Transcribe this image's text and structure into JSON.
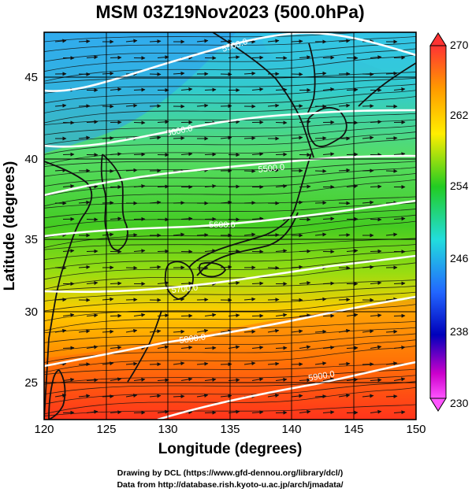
{
  "title": "MSM 03Z19Nov2023 (500.0hPa)",
  "x_axis": {
    "label": "Longitude (degrees)",
    "ticks": [
      "120",
      "125",
      "130",
      "135",
      "140",
      "145",
      "150"
    ]
  },
  "y_axis": {
    "label": "Latitude  (degrees)",
    "ticks": [
      "25",
      "30",
      "35",
      "40",
      "45"
    ]
  },
  "colorbar": {
    "labels": [
      "270",
      "262",
      "254",
      "246",
      "238",
      "230"
    ],
    "colors": [
      "#ff3333",
      "#ff9900",
      "#ffee00",
      "#22cc22",
      "#22dddd",
      "#2266ff",
      "#0000bb",
      "#cc00cc",
      "#ff55ff"
    ]
  },
  "contour_labels": [
    "5500.0",
    "5600.0",
    "5500.0",
    "5600.0",
    "5700.0",
    "5800.0",
    "5900.0"
  ],
  "credits": {
    "line1": "Drawing by DCL (https://www.gfd-dennou.org/library/dcl/)",
    "line2": "Data from http://database.rish.kyoto-u.ac.jp/arch/jmadata/"
  },
  "chart_data": {
    "type": "heatmap",
    "title": "MSM 03Z19Nov2023 (500.0hPa)",
    "xlabel": "Longitude (degrees)",
    "ylabel": "Latitude  (degrees)",
    "xlim": [
      120,
      150
    ],
    "ylim": [
      22.5,
      47.6
    ],
    "colorbar_range": [
      230,
      270
    ],
    "fields": [
      "temperature (shaded)",
      "geopotential height (white contours)",
      "wind (streamlines)"
    ],
    "temperature_by_latitude": [
      {
        "lat": 47,
        "value": 247
      },
      {
        "lat": 44,
        "value": 250
      },
      {
        "lat": 41,
        "value": 253
      },
      {
        "lat": 38,
        "value": 255
      },
      {
        "lat": 35,
        "value": 257
      },
      {
        "lat": 32,
        "value": 259
      },
      {
        "lat": 29,
        "value": 262
      },
      {
        "lat": 26,
        "value": 265
      },
      {
        "lat": 23,
        "value": 267
      }
    ],
    "height_contours": [
      {
        "label": "5500.0",
        "lon": 140,
        "lat": 46.5
      },
      {
        "label": "5600.0",
        "lon": 131,
        "lat": 41.5
      },
      {
        "label": "5500.0",
        "lon": 138,
        "lat": 39.5
      },
      {
        "label": "5600.0",
        "lon": 135.5,
        "lat": 36.2
      },
      {
        "label": "5700.0",
        "lon": 131.5,
        "lat": 31.3
      },
      {
        "label": "5800.0",
        "lon": 132,
        "lat": 28.2
      },
      {
        "label": "5900.0",
        "lon": 142,
        "lat": 25.5
      }
    ],
    "wind": "westerly"
  }
}
